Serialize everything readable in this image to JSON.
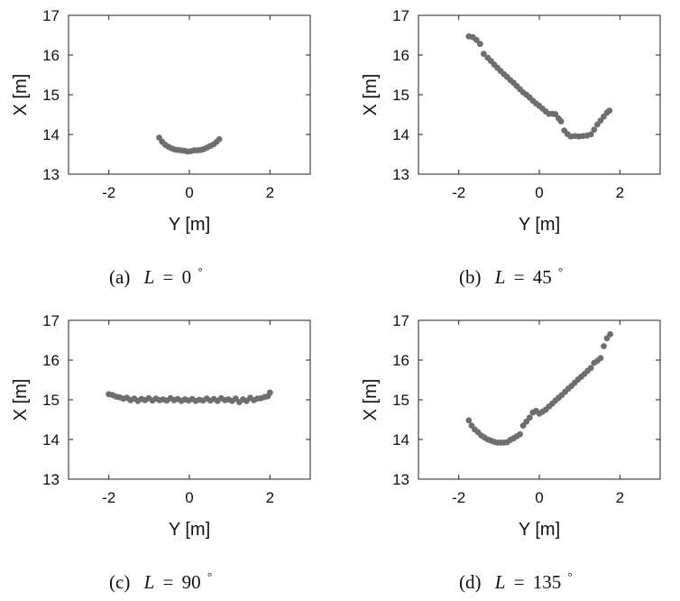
{
  "chart_data": [
    {
      "type": "scatter",
      "panel": "a",
      "caption": {
        "prefix": "(a)",
        "variable": "L",
        "equals": "=",
        "value": "0",
        "unit": "°"
      },
      "xlabel": "Y [m]",
      "ylabel": "X [m]",
      "xlim": [
        -3,
        3
      ],
      "ylim": [
        13,
        17
      ],
      "xticks": [
        "-2",
        "0",
        "2"
      ],
      "yticks": [
        "13",
        "14",
        "15",
        "16",
        "17"
      ],
      "grid": false,
      "marker_color": "#6e6e6e",
      "points": [
        [
          -0.75,
          13.92
        ],
        [
          -0.68,
          13.82
        ],
        [
          -0.6,
          13.74
        ],
        [
          -0.52,
          13.69
        ],
        [
          -0.44,
          13.65
        ],
        [
          -0.36,
          13.62
        ],
        [
          -0.28,
          13.61
        ],
        [
          -0.2,
          13.6
        ],
        [
          -0.12,
          13.59
        ],
        [
          -0.04,
          13.57
        ],
        [
          0.04,
          13.58
        ],
        [
          0.12,
          13.6
        ],
        [
          0.2,
          13.6
        ],
        [
          0.28,
          13.61
        ],
        [
          0.36,
          13.63
        ],
        [
          0.44,
          13.67
        ],
        [
          0.52,
          13.71
        ],
        [
          0.6,
          13.75
        ],
        [
          0.67,
          13.81
        ],
        [
          0.74,
          13.88
        ]
      ]
    },
    {
      "type": "scatter",
      "panel": "b",
      "caption": {
        "prefix": "(b)",
        "variable": "L",
        "equals": "=",
        "value": "45",
        "unit": "°"
      },
      "xlabel": "Y [m]",
      "ylabel": "X [m]",
      "xlim": [
        -3,
        3
      ],
      "ylim": [
        13,
        17
      ],
      "xticks": [
        "-2",
        "0",
        "2"
      ],
      "yticks": [
        "13",
        "14",
        "15",
        "16",
        "17"
      ],
      "grid": false,
      "marker_color": "#6e6e6e",
      "points": [
        [
          -1.75,
          16.47
        ],
        [
          -1.65,
          16.45
        ],
        [
          -1.56,
          16.38
        ],
        [
          -1.47,
          16.28
        ],
        [
          -1.38,
          16.03
        ],
        [
          -1.28,
          15.93
        ],
        [
          -1.2,
          15.85
        ],
        [
          -1.12,
          15.76
        ],
        [
          -1.04,
          15.68
        ],
        [
          -0.96,
          15.6
        ],
        [
          -0.88,
          15.52
        ],
        [
          -0.8,
          15.45
        ],
        [
          -0.72,
          15.37
        ],
        [
          -0.64,
          15.3
        ],
        [
          -0.56,
          15.22
        ],
        [
          -0.48,
          15.14
        ],
        [
          -0.4,
          15.06
        ],
        [
          -0.32,
          15.0
        ],
        [
          -0.24,
          14.93
        ],
        [
          -0.16,
          14.85
        ],
        [
          -0.08,
          14.78
        ],
        [
          0.0,
          14.72
        ],
        [
          0.08,
          14.65
        ],
        [
          0.16,
          14.58
        ],
        [
          0.24,
          14.52
        ],
        [
          0.32,
          14.52
        ],
        [
          0.4,
          14.51
        ],
        [
          0.48,
          14.4
        ],
        [
          0.54,
          14.33
        ],
        [
          0.62,
          14.1
        ],
        [
          0.7,
          14.01
        ],
        [
          0.78,
          13.95
        ],
        [
          0.88,
          13.96
        ],
        [
          0.98,
          13.95
        ],
        [
          1.08,
          13.96
        ],
        [
          1.18,
          13.97
        ],
        [
          1.28,
          14.0
        ],
        [
          1.36,
          14.12
        ],
        [
          1.44,
          14.25
        ],
        [
          1.52,
          14.35
        ],
        [
          1.6,
          14.45
        ],
        [
          1.68,
          14.55
        ],
        [
          1.74,
          14.6
        ]
      ]
    },
    {
      "type": "scatter",
      "panel": "c",
      "caption": {
        "prefix": "(c)",
        "variable": "L",
        "equals": "=",
        "value": "90",
        "unit": "°"
      },
      "xlabel": "Y [m]",
      "ylabel": "X [m]",
      "xlim": [
        -3,
        3
      ],
      "ylim": [
        13,
        17
      ],
      "xticks": [
        "-2",
        "0",
        "2"
      ],
      "yticks": [
        "13",
        "14",
        "15",
        "16",
        "17"
      ],
      "grid": false,
      "marker_color": "#6e6e6e",
      "points": [
        [
          -2.0,
          15.14
        ],
        [
          -1.91,
          15.12
        ],
        [
          -1.82,
          15.08
        ],
        [
          -1.73,
          15.06
        ],
        [
          -1.64,
          15.03
        ],
        [
          -1.55,
          15.05
        ],
        [
          -1.46,
          14.99
        ],
        [
          -1.37,
          15.03
        ],
        [
          -1.28,
          14.97
        ],
        [
          -1.19,
          15.02
        ],
        [
          -1.1,
          14.99
        ],
        [
          -1.01,
          15.04
        ],
        [
          -0.92,
          14.98
        ],
        [
          -0.83,
          15.03
        ],
        [
          -0.74,
          14.99
        ],
        [
          -0.65,
          15.01
        ],
        [
          -0.56,
          14.98
        ],
        [
          -0.47,
          15.04
        ],
        [
          -0.38,
          14.99
        ],
        [
          -0.29,
          15.02
        ],
        [
          -0.2,
          14.97
        ],
        [
          -0.11,
          15.01
        ],
        [
          -0.02,
          14.98
        ],
        [
          0.07,
          15.02
        ],
        [
          0.16,
          14.97
        ],
        [
          0.25,
          15.0
        ],
        [
          0.34,
          14.98
        ],
        [
          0.43,
          15.03
        ],
        [
          0.52,
          14.98
        ],
        [
          0.61,
          15.02
        ],
        [
          0.7,
          14.97
        ],
        [
          0.79,
          15.04
        ],
        [
          0.88,
          14.99
        ],
        [
          0.97,
          15.01
        ],
        [
          1.06,
          14.97
        ],
        [
          1.15,
          15.03
        ],
        [
          1.24,
          14.94
        ],
        [
          1.33,
          15.01
        ],
        [
          1.42,
          14.97
        ],
        [
          1.51,
          15.05
        ],
        [
          1.6,
          14.99
        ],
        [
          1.69,
          15.03
        ],
        [
          1.78,
          15.04
        ],
        [
          1.87,
          15.07
        ],
        [
          1.95,
          15.09
        ],
        [
          2.0,
          15.18
        ]
      ]
    },
    {
      "type": "scatter",
      "panel": "d",
      "caption": {
        "prefix": "(d)",
        "variable": "L",
        "equals": "=",
        "value": "135",
        "unit": "°"
      },
      "xlabel": "Y [m]",
      "ylabel": "X [m]",
      "xlim": [
        -3,
        3
      ],
      "ylim": [
        13,
        17
      ],
      "xticks": [
        "-2",
        "0",
        "2"
      ],
      "yticks": [
        "13",
        "14",
        "15",
        "16",
        "17"
      ],
      "grid": false,
      "marker_color": "#6e6e6e",
      "points": [
        [
          -1.75,
          14.48
        ],
        [
          -1.68,
          14.35
        ],
        [
          -1.6,
          14.25
        ],
        [
          -1.52,
          14.18
        ],
        [
          -1.44,
          14.1
        ],
        [
          -1.36,
          14.05
        ],
        [
          -1.28,
          14.0
        ],
        [
          -1.2,
          13.97
        ],
        [
          -1.12,
          13.94
        ],
        [
          -1.04,
          13.92
        ],
        [
          -0.96,
          13.92
        ],
        [
          -0.88,
          13.92
        ],
        [
          -0.8,
          13.93
        ],
        [
          -0.72,
          13.99
        ],
        [
          -0.64,
          14.03
        ],
        [
          -0.56,
          14.08
        ],
        [
          -0.48,
          14.13
        ],
        [
          -0.4,
          14.35
        ],
        [
          -0.32,
          14.45
        ],
        [
          -0.24,
          14.55
        ],
        [
          -0.16,
          14.68
        ],
        [
          -0.08,
          14.72
        ],
        [
          0.0,
          14.65
        ],
        [
          0.08,
          14.7
        ],
        [
          0.16,
          14.75
        ],
        [
          0.24,
          14.83
        ],
        [
          0.32,
          14.9
        ],
        [
          0.4,
          14.98
        ],
        [
          0.48,
          15.05
        ],
        [
          0.56,
          15.12
        ],
        [
          0.64,
          15.2
        ],
        [
          0.72,
          15.28
        ],
        [
          0.8,
          15.35
        ],
        [
          0.88,
          15.43
        ],
        [
          0.96,
          15.51
        ],
        [
          1.04,
          15.58
        ],
        [
          1.12,
          15.65
        ],
        [
          1.2,
          15.73
        ],
        [
          1.28,
          15.8
        ],
        [
          1.36,
          15.93
        ],
        [
          1.44,
          15.98
        ],
        [
          1.52,
          16.05
        ],
        [
          1.6,
          16.35
        ],
        [
          1.68,
          16.55
        ],
        [
          1.76,
          16.65
        ]
      ]
    }
  ]
}
